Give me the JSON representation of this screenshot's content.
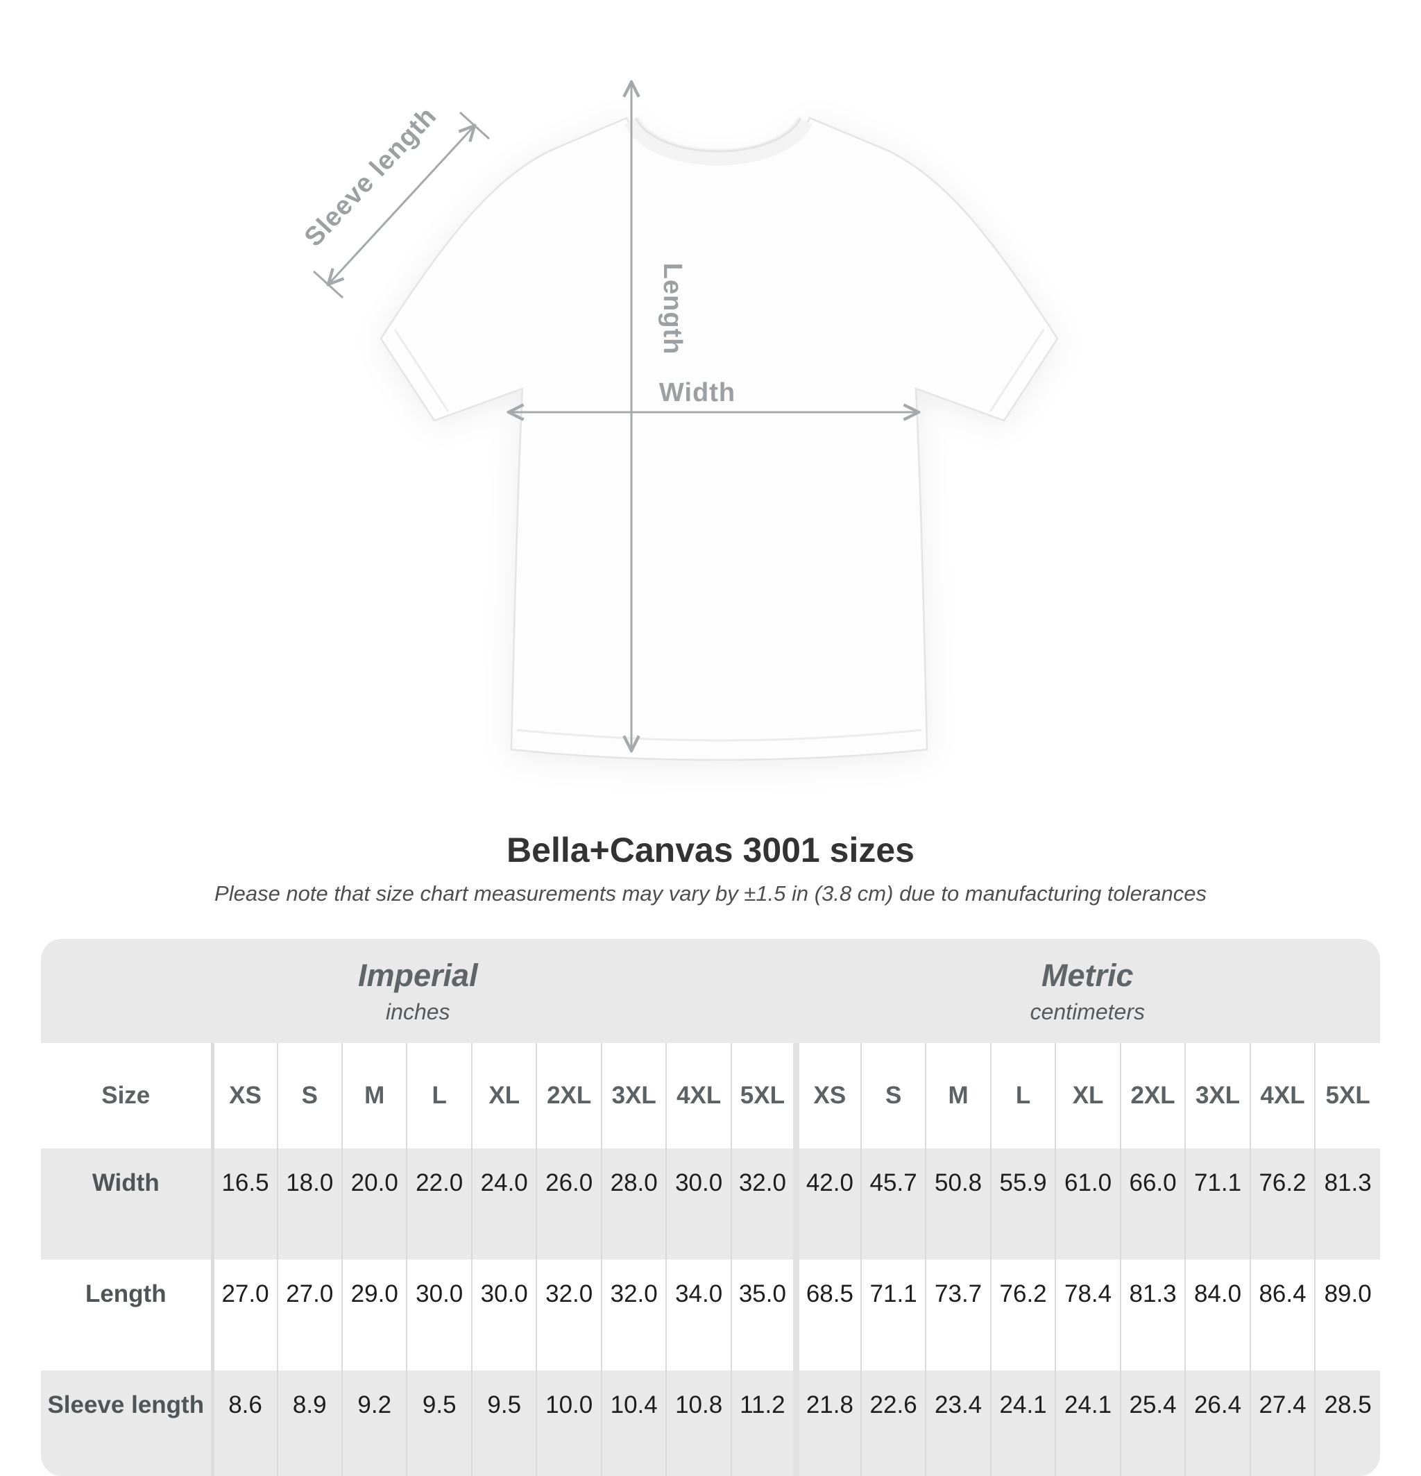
{
  "diagram": {
    "sleeve_label": "Sleeve length",
    "length_label": "Length",
    "width_label": "Width",
    "annotation_color": "#a6a9ab"
  },
  "heading": {
    "title": "Bella+Canvas 3001 sizes",
    "note": "Please note that size chart measurements may vary by ±1.5 in (3.8 cm) due to manufacturing tolerances"
  },
  "table": {
    "sections": [
      {
        "label": "Imperial",
        "sublabel": "inches"
      },
      {
        "label": "Metric",
        "sublabel": "centimeters"
      }
    ],
    "size_header": "Size",
    "sizes": [
      "XS",
      "S",
      "M",
      "L",
      "XL",
      "2XL",
      "3XL",
      "4XL",
      "5XL"
    ],
    "rows": [
      {
        "label": "Width",
        "imperial": [
          "16.5",
          "18.0",
          "20.0",
          "22.0",
          "24.0",
          "26.0",
          "28.0",
          "30.0",
          "32.0"
        ],
        "metric": [
          "42.0",
          "45.7",
          "50.8",
          "55.9",
          "61.0",
          "66.0",
          "71.1",
          "76.2",
          "81.3"
        ]
      },
      {
        "label": "Length",
        "imperial": [
          "27.0",
          "27.0",
          "29.0",
          "30.0",
          "30.0",
          "32.0",
          "32.0",
          "34.0",
          "35.0"
        ],
        "metric": [
          "68.5",
          "71.1",
          "73.7",
          "76.2",
          "78.4",
          "81.3",
          "84.0",
          "86.4",
          "89.0"
        ]
      },
      {
        "label": "Sleeve length",
        "imperial": [
          "8.6",
          "8.9",
          "9.2",
          "9.5",
          "9.5",
          "10.0",
          "10.4",
          "10.8",
          "11.2"
        ],
        "metric": [
          "21.8",
          "22.6",
          "23.4",
          "24.1",
          "24.1",
          "25.4",
          "26.4",
          "27.4",
          "28.5"
        ]
      }
    ]
  },
  "colors": {
    "table_band": "#e9e9e9",
    "separator": "#dadada",
    "title_text": "#333333",
    "annotation_gray": "#9ca0a2",
    "value_text": "#1d1d1d"
  },
  "chart_data": {
    "type": "table",
    "title": "Bella+Canvas 3001 sizes",
    "note": "Please note that size chart measurements may vary by ±1.5 in (3.8 cm) due to manufacturing tolerances",
    "units": {
      "imperial": "inches",
      "metric": "centimeters"
    },
    "categories": [
      "XS",
      "S",
      "M",
      "L",
      "XL",
      "2XL",
      "3XL",
      "4XL",
      "5XL"
    ],
    "series": [
      {
        "name": "Width (in)",
        "values": [
          16.5,
          18.0,
          20.0,
          22.0,
          24.0,
          26.0,
          28.0,
          30.0,
          32.0
        ]
      },
      {
        "name": "Length (in)",
        "values": [
          27.0,
          27.0,
          29.0,
          30.0,
          30.0,
          32.0,
          32.0,
          34.0,
          35.0
        ]
      },
      {
        "name": "Sleeve length (in)",
        "values": [
          8.6,
          8.9,
          9.2,
          9.5,
          9.5,
          10.0,
          10.4,
          10.8,
          11.2
        ]
      },
      {
        "name": "Width (cm)",
        "values": [
          42.0,
          45.7,
          50.8,
          55.9,
          61.0,
          66.0,
          71.1,
          76.2,
          81.3
        ]
      },
      {
        "name": "Length (cm)",
        "values": [
          68.5,
          71.1,
          73.7,
          76.2,
          78.4,
          81.3,
          84.0,
          86.4,
          89.0
        ]
      },
      {
        "name": "Sleeve length (cm)",
        "values": [
          21.8,
          22.6,
          23.4,
          24.1,
          24.1,
          25.4,
          26.4,
          27.4,
          28.5
        ]
      }
    ]
  }
}
